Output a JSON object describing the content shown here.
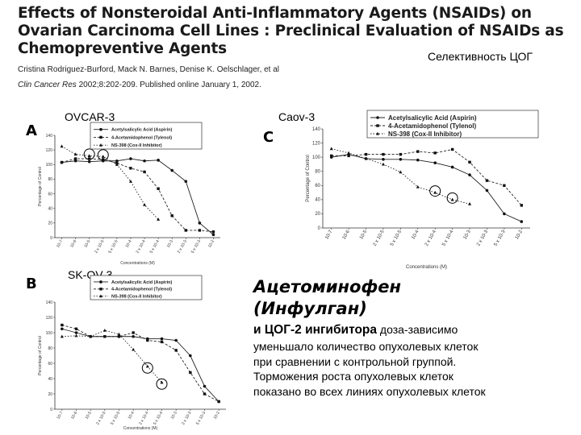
{
  "paper": {
    "title": "Effects of Nonsteroidal Anti-Inflammatory Agents (NSAIDs) on Ovarian Carcinoma Cell Lines : Preclinical Evaluation of NSAIDs as Chemopreventive Agents",
    "authors": "Cristina Rodriguez-Burford, Mack N. Barnes, Denise K. Oelschlager, et al",
    "citation_journal": "Clin Cancer Res",
    "citation_rest": " 2002;8:202-209. Published online January 1, 2002."
  },
  "slide": {
    "cog_label": "Селективность ЦОГ",
    "panel_labels": {
      "A": "OVCAR-3",
      "C": "Caov-3",
      "B": "SK-OV-3"
    },
    "heading_line1": "Ацетоминофен",
    "heading_line2": "(Инфулган)",
    "heading_line3_bold": "и ЦОГ-2 ингибитора",
    "heading_line3_rest": " доза-зависимо",
    "body_lines": [
      "уменьшало количество опухолевых клеток",
      "при сравнении с контрольной группой.",
      "Торможения роста опухолевых клеток",
      "показано во всех линиях опухолевых клеток"
    ]
  },
  "chart_data": [
    {
      "type": "line",
      "panel": "A",
      "x": [
        "10-7",
        "10-6",
        "10-5",
        "2 x 10-5",
        "5 x 10-5",
        "10-4",
        "2 x 10-4",
        "5 x 10-4",
        "10-3",
        "2 x 10-3",
        "5 x 10-3",
        "10-2"
      ],
      "ylabel": "Percentage of Control",
      "xlabel": "Concentrations (M)",
      "ylim": [
        0,
        140
      ],
      "yticks": [
        0,
        20,
        40,
        60,
        80,
        100,
        120,
        140
      ],
      "series": [
        {
          "name": "Acetylsalicylic Acid (Aspirin)",
          "values": [
            103,
            105,
            104,
            105,
            105,
            108,
            105,
            106,
            92,
            77,
            20,
            4
          ]
        },
        {
          "name": "4-Acetamidophenol (Tylenol)",
          "values": [
            103,
            108,
            108,
            107,
            102,
            95,
            90,
            67,
            30,
            10,
            10,
            8
          ]
        },
        {
          "name": "NS-398 (Cox-II Inhibitor)",
          "values": [
            125,
            114,
            112,
            111,
            100,
            77,
            45,
            25,
            null,
            null,
            null,
            null
          ]
        }
      ]
    },
    {
      "type": "line",
      "panel": "C",
      "x": [
        "10-7",
        "10-6",
        "10-5",
        "2 x 10-5",
        "5 x 10-5",
        "10-4",
        "2 x 10-4",
        "5 x 10-4",
        "10-3",
        "2 x 10-3",
        "5 x 10-3",
        "10-2"
      ],
      "ylabel": "Percentage of Control",
      "xlabel": "Concentrations (M)",
      "ylim": [
        0,
        140
      ],
      "yticks": [
        0,
        20,
        40,
        60,
        80,
        100,
        120,
        140
      ],
      "series": [
        {
          "name": "Acetylsalicylic Acid (Aspirin)",
          "values": [
            100,
            104,
            98,
            97,
            97,
            96,
            92,
            86,
            75,
            53,
            20,
            9
          ]
        },
        {
          "name": "4-Acetamidophenol (Tylenol)",
          "values": [
            102,
            102,
            104,
            104,
            104,
            108,
            106,
            111,
            93,
            67,
            60,
            32
          ]
        },
        {
          "name": "NS-398 (Cox-II Inhibitor)",
          "values": [
            112,
            106,
            98,
            90,
            79,
            58,
            50,
            40,
            34,
            null,
            null,
            null
          ]
        }
      ]
    },
    {
      "type": "line",
      "panel": "B",
      "x": [
        "10-7",
        "10-6",
        "10-5",
        "2 x 10-5",
        "5 x 10-5",
        "10-4",
        "2 x 10-4",
        "5 x 10-4",
        "10-3",
        "2 x 10-3",
        "5 x 10-3",
        "10-2"
      ],
      "ylabel": "Percentage of Control",
      "xlabel": "Concentrations (M)",
      "ylim": [
        0,
        140
      ],
      "yticks": [
        0,
        20,
        40,
        60,
        80,
        100,
        120,
        140
      ],
      "series": [
        {
          "name": "Acetylsalicylic Acid (Aspirin)",
          "values": [
            105,
            100,
            95,
            95,
            95,
            95,
            92,
            92,
            90,
            70,
            30,
            10
          ]
        },
        {
          "name": "4-Acetamidophenol (Tylenol)",
          "values": [
            110,
            105,
            95,
            95,
            95,
            100,
            90,
            88,
            77,
            48,
            20,
            10
          ]
        },
        {
          "name": "NS-398 (Cox-II Inhibitor)",
          "values": [
            95,
            96,
            95,
            103,
            98,
            78,
            56,
            35,
            null,
            null,
            null,
            null
          ]
        }
      ]
    }
  ]
}
